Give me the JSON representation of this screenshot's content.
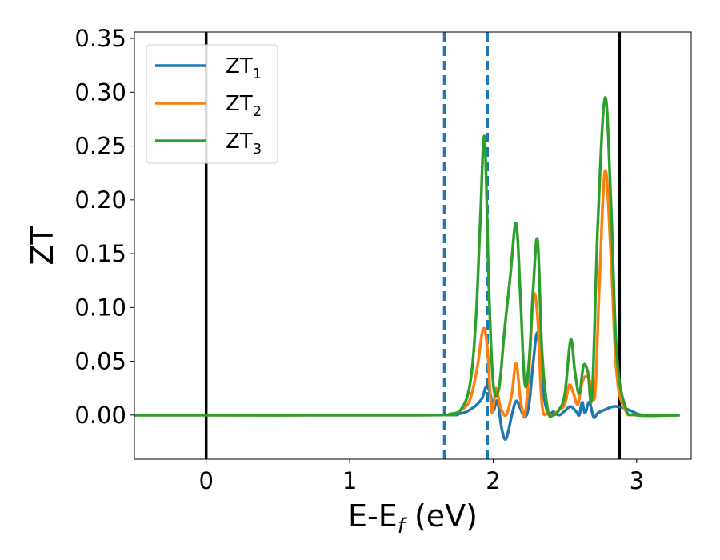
{
  "chart_data": {
    "type": "line",
    "xlabel": {
      "main": "E-E",
      "sub": "f",
      "tail": " (eV)"
    },
    "ylabel": "ZT",
    "xlim": [
      -0.5,
      3.38
    ],
    "ylim": [
      -0.041,
      0.356
    ],
    "x_ticks": [
      0,
      1,
      2,
      3
    ],
    "x_tick_labels": [
      "0",
      "1",
      "2",
      "3"
    ],
    "y_ticks": [
      0.0,
      0.05,
      0.1,
      0.15,
      0.2,
      0.25,
      0.3,
      0.35
    ],
    "y_tick_labels": [
      "0.00",
      "0.05",
      "0.10",
      "0.15",
      "0.20",
      "0.25",
      "0.30",
      "0.35"
    ],
    "grid": false,
    "legend_position": "top-left",
    "vertical_lines": [
      {
        "x": 0.0,
        "style": "solid",
        "color": "#000000"
      },
      {
        "x": 2.88,
        "style": "solid",
        "color": "#000000"
      },
      {
        "x": 1.66,
        "style": "dashed",
        "color": "#1f77b4"
      },
      {
        "x": 1.96,
        "style": "dashed",
        "color": "#1f77b4"
      }
    ],
    "series": [
      {
        "name": "ZT",
        "sub": "1",
        "color": "#1f77b4",
        "x": [
          -0.5,
          1.5,
          1.75,
          1.85,
          1.92,
          1.95,
          1.98,
          2.0,
          2.03,
          2.06,
          2.09,
          2.13,
          2.16,
          2.19,
          2.22,
          2.25,
          2.28,
          2.31,
          2.34,
          2.38,
          2.42,
          2.46,
          2.5,
          2.54,
          2.58,
          2.6,
          2.62,
          2.64,
          2.67,
          2.7,
          2.73,
          2.78,
          2.84,
          2.9,
          2.96,
          3.05,
          3.3
        ],
        "y": [
          0.0,
          0.0,
          0.001,
          0.006,
          0.015,
          0.026,
          0.02,
          0.004,
          0.013,
          -0.013,
          -0.022,
          0.0,
          0.013,
          0.006,
          -0.002,
          0.01,
          0.05,
          0.076,
          0.03,
          0.002,
          0.003,
          0.0,
          0.004,
          0.008,
          0.003,
          0.0,
          0.012,
          0.002,
          0.012,
          -0.002,
          0.002,
          0.005,
          0.008,
          0.007,
          0.004,
          0.0,
          0.0
        ]
      },
      {
        "name": "ZT",
        "sub": "2",
        "color": "#ff7f0e",
        "x": [
          -0.5,
          1.5,
          1.7,
          1.78,
          1.84,
          1.89,
          1.93,
          1.96,
          1.99,
          2.02,
          2.05,
          2.09,
          2.13,
          2.16,
          2.19,
          2.22,
          2.25,
          2.28,
          2.31,
          2.34,
          2.38,
          2.42,
          2.46,
          2.5,
          2.53,
          2.56,
          2.59,
          2.62,
          2.65,
          2.68,
          2.71,
          2.74,
          2.78,
          2.82,
          2.86,
          2.92,
          3.0,
          3.3
        ],
        "y": [
          0.0,
          0.0,
          0.001,
          0.005,
          0.015,
          0.045,
          0.08,
          0.062,
          0.003,
          0.025,
          0.008,
          0.0,
          0.02,
          0.048,
          0.015,
          0.0,
          0.04,
          0.11,
          0.09,
          0.01,
          0.001,
          0.0,
          0.005,
          0.01,
          0.028,
          0.02,
          0.01,
          0.03,
          0.036,
          0.03,
          0.02,
          0.12,
          0.227,
          0.15,
          0.04,
          0.005,
          0.0,
          0.0
        ]
      },
      {
        "name": "ZT",
        "sub": "3",
        "color": "#2ca02c",
        "x": [
          -0.5,
          1.5,
          1.7,
          1.78,
          1.84,
          1.88,
          1.91,
          1.94,
          1.97,
          2.0,
          2.04,
          2.08,
          2.12,
          2.16,
          2.19,
          2.22,
          2.25,
          2.28,
          2.31,
          2.34,
          2.38,
          2.42,
          2.46,
          2.5,
          2.54,
          2.57,
          2.6,
          2.63,
          2.66,
          2.69,
          2.73,
          2.78,
          2.82,
          2.86,
          2.92,
          3.0,
          3.3
        ],
        "y": [
          0.0,
          0.0,
          0.001,
          0.006,
          0.03,
          0.09,
          0.18,
          0.258,
          0.12,
          0.03,
          0.025,
          0.08,
          0.13,
          0.178,
          0.11,
          0.03,
          0.05,
          0.12,
          0.162,
          0.06,
          0.005,
          0.0,
          0.005,
          0.02,
          0.07,
          0.04,
          0.02,
          0.046,
          0.04,
          0.02,
          0.18,
          0.295,
          0.2,
          0.06,
          0.008,
          0.0,
          0.0
        ]
      }
    ]
  }
}
